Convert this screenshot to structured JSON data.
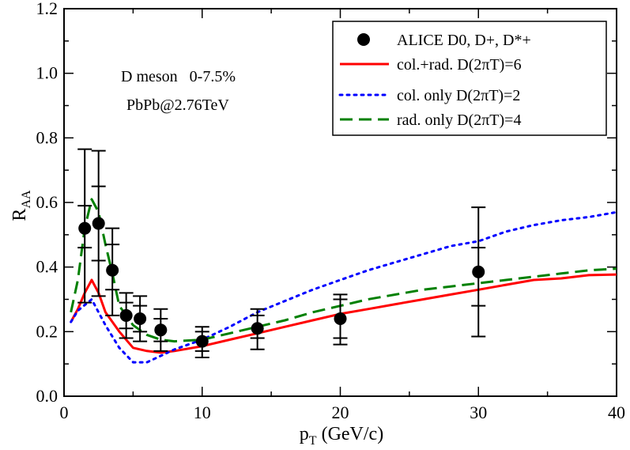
{
  "chart_data": {
    "type": "line",
    "xlim": [
      0,
      40
    ],
    "ylim": [
      0,
      1.2
    ],
    "xticks": [
      0,
      10,
      20,
      30,
      40
    ],
    "yticks": [
      0.0,
      0.2,
      0.4,
      0.6,
      0.8,
      1.0,
      1.2
    ],
    "xtick_labels": [
      "0",
      "10",
      "20",
      "30",
      "40"
    ],
    "ytick_labels": [
      "0.0",
      "0.2",
      "0.4",
      "0.6",
      "0.8",
      "1.0",
      "1.2"
    ],
    "xlabel": {
      "main": "p",
      "sub": "T",
      "rest": " (GeV/c)"
    },
    "ylabel": {
      "main": "R",
      "sub": "AA"
    },
    "annotations": [
      "D meson   0-7.5%",
      "PbPb@2.76TeV"
    ],
    "legend_position": "top-right",
    "data_points": {
      "name": "ALICE D0, D+, D*+",
      "color": "#000000",
      "points": [
        {
          "x": 1.5,
          "y": 0.52,
          "stat": [
            0.46,
            0.59
          ],
          "syst": [
            0.29,
            0.765
          ]
        },
        {
          "x": 2.5,
          "y": 0.535,
          "stat": [
            0.42,
            0.65
          ],
          "syst": [
            0.31,
            0.76
          ]
        },
        {
          "x": 3.5,
          "y": 0.39,
          "stat": [
            0.33,
            0.47
          ],
          "syst": [
            0.25,
            0.52
          ]
        },
        {
          "x": 4.5,
          "y": 0.25,
          "stat": [
            0.21,
            0.29
          ],
          "syst": [
            0.18,
            0.32
          ]
        },
        {
          "x": 5.5,
          "y": 0.24,
          "stat": [
            0.2,
            0.28
          ],
          "syst": [
            0.17,
            0.31
          ]
        },
        {
          "x": 7.0,
          "y": 0.205,
          "stat": [
            0.17,
            0.24
          ],
          "syst": [
            0.14,
            0.27
          ]
        },
        {
          "x": 10.0,
          "y": 0.17,
          "stat": [
            0.14,
            0.2
          ],
          "syst": [
            0.12,
            0.215
          ]
        },
        {
          "x": 14.0,
          "y": 0.21,
          "stat": [
            0.18,
            0.25
          ],
          "syst": [
            0.145,
            0.27
          ]
        },
        {
          "x": 20.0,
          "y": 0.24,
          "stat": [
            0.18,
            0.3
          ],
          "syst": [
            0.16,
            0.315
          ]
        },
        {
          "x": 30.0,
          "y": 0.385,
          "stat": [
            0.28,
            0.46
          ],
          "syst": [
            0.185,
            0.585
          ]
        }
      ]
    },
    "series": [
      {
        "name": "col.+rad. D(2πT)=6",
        "color": "#ff0000",
        "style": "solid",
        "x": [
          0.5,
          1,
          1.5,
          2,
          2.5,
          3,
          4,
          5,
          6,
          7,
          8,
          10,
          12,
          14,
          16,
          18,
          20,
          22,
          24,
          26,
          28,
          30,
          32,
          34,
          36,
          38,
          40
        ],
        "y": [
          0.23,
          0.27,
          0.32,
          0.36,
          0.32,
          0.26,
          0.2,
          0.15,
          0.14,
          0.135,
          0.14,
          0.155,
          0.175,
          0.195,
          0.215,
          0.235,
          0.255,
          0.27,
          0.285,
          0.3,
          0.315,
          0.33,
          0.345,
          0.36,
          0.365,
          0.375,
          0.377
        ]
      },
      {
        "name": "col. only D(2πT)=2",
        "color": "#0000ff",
        "style": "dotted",
        "x": [
          0.5,
          1,
          2,
          3,
          4,
          5,
          6,
          7,
          8,
          10,
          12,
          14,
          16,
          18,
          20,
          22,
          24,
          26,
          28,
          30,
          32,
          34,
          36,
          38,
          40
        ],
        "y": [
          0.23,
          0.265,
          0.3,
          0.22,
          0.15,
          0.105,
          0.105,
          0.125,
          0.145,
          0.175,
          0.215,
          0.26,
          0.295,
          0.33,
          0.36,
          0.39,
          0.415,
          0.44,
          0.465,
          0.48,
          0.51,
          0.53,
          0.545,
          0.555,
          0.57
        ]
      },
      {
        "name": "rad. only D(2πT)=4",
        "color": "#008000",
        "style": "dashed",
        "x": [
          0.5,
          1,
          1.5,
          2,
          2.5,
          3,
          3.5,
          4,
          5,
          6,
          7,
          8,
          10,
          12,
          14,
          16,
          18,
          20,
          22,
          24,
          26,
          28,
          30,
          32,
          34,
          36,
          38,
          40
        ],
        "y": [
          0.26,
          0.36,
          0.52,
          0.61,
          0.57,
          0.47,
          0.38,
          0.28,
          0.22,
          0.19,
          0.175,
          0.17,
          0.175,
          0.195,
          0.215,
          0.235,
          0.26,
          0.28,
          0.3,
          0.315,
          0.33,
          0.34,
          0.35,
          0.36,
          0.37,
          0.38,
          0.39,
          0.395
        ]
      }
    ]
  }
}
